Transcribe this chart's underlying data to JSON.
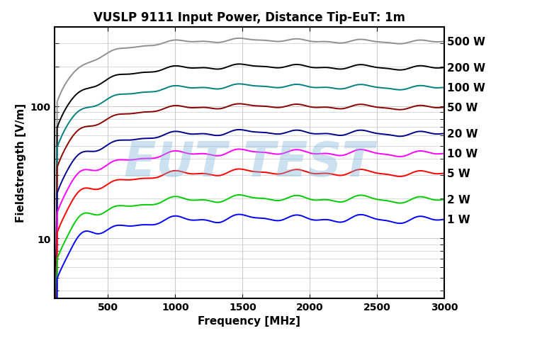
{
  "title": "VUSLP 9111 Input Power, Distance Tip-EuT: 1m",
  "xlabel": "Frequency [MHz]",
  "ylabel": "Fieldstrength [V/m]",
  "watermark": "EUT TEST",
  "xmin": 100,
  "xmax": 3000,
  "ymin": 3.5,
  "ymax": 400,
  "series": [
    {
      "label": "500 W",
      "color": "#909090",
      "power": 500,
      "k": 13.4,
      "peak_f": 220,
      "peak_amp": 1.05,
      "plateau_dip": -0.03,
      "noise_amp": 0.025
    },
    {
      "label": "200 W",
      "color": "#000000",
      "power": 200,
      "k": 13.4,
      "peak_f": 240,
      "peak_amp": 1.08,
      "plateau_dip": -0.02,
      "noise_amp": 0.03
    },
    {
      "label": "100 W",
      "color": "#008080",
      "power": 100,
      "k": 13.4,
      "peak_f": 250,
      "peak_amp": 1.1,
      "plateau_dip": -0.02,
      "noise_amp": 0.03
    },
    {
      "label": "50 W",
      "color": "#8B0000",
      "power": 50,
      "k": 13.4,
      "peak_f": 260,
      "peak_amp": 1.12,
      "plateau_dip": -0.02,
      "noise_amp": 0.03
    },
    {
      "label": "20 W",
      "color": "#00008B",
      "power": 20,
      "k": 13.4,
      "peak_f": 270,
      "peak_amp": 1.15,
      "plateau_dip": -0.02,
      "noise_amp": 0.035
    },
    {
      "label": "10 W",
      "color": "#FF00FF",
      "power": 10,
      "k": 13.4,
      "peak_f": 280,
      "peak_amp": 1.18,
      "plateau_dip": -0.02,
      "noise_amp": 0.04
    },
    {
      "label": "5 W",
      "color": "#FF0000",
      "power": 5,
      "k": 13.4,
      "peak_f": 290,
      "peak_amp": 1.2,
      "plateau_dip": -0.02,
      "noise_amp": 0.04
    },
    {
      "label": "2 W",
      "color": "#00CC00",
      "power": 2,
      "k": 13.4,
      "peak_f": 300,
      "peak_amp": 1.22,
      "plateau_dip": -0.02,
      "noise_amp": 0.045
    },
    {
      "label": "1 W",
      "color": "#0000FF",
      "power": 1,
      "k": 13.4,
      "peak_f": 310,
      "peak_amp": 1.25,
      "plateau_dip": -0.02,
      "noise_amp": 0.05
    }
  ],
  "background_color": "#ffffff",
  "grid_color": "#cccccc",
  "title_fontsize": 12,
  "label_fontsize": 11,
  "tick_fontsize": 10,
  "legend_fontsize": 11
}
